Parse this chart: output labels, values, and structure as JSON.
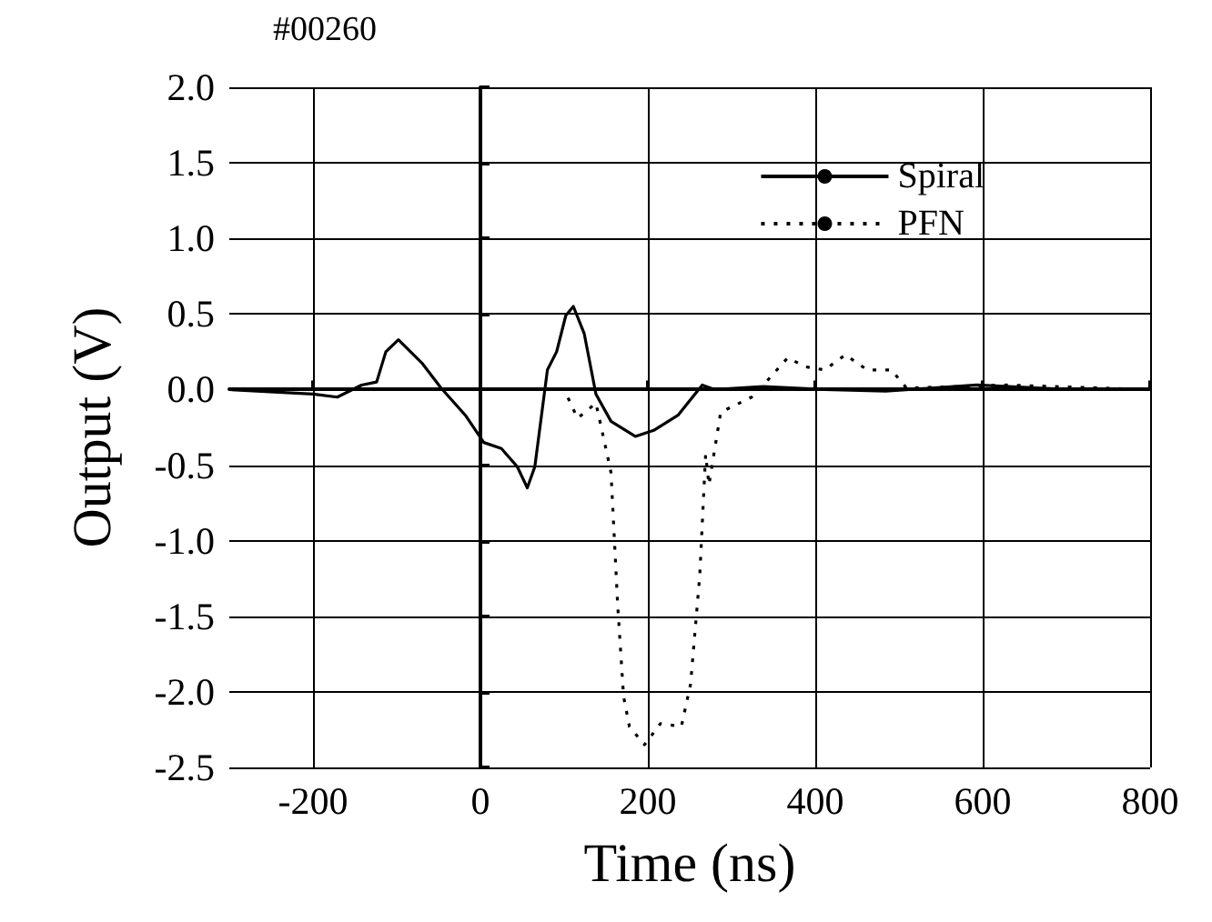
{
  "chart_data": {
    "type": "line",
    "title": "#00260",
    "xlabel": "Time (ns)",
    "ylabel": "Output (V)",
    "xlim": [
      -300,
      800
    ],
    "xticks": [
      -200,
      0,
      200,
      400,
      600,
      800
    ],
    "ylim": [
      -2.5,
      2.0
    ],
    "yticks": [
      {
        "value": -2.5,
        "label": "-2.5"
      },
      {
        "value": -2,
        "label": "-2.0"
      },
      {
        "value": -1.5,
        "label": "-1.5"
      },
      {
        "value": -1,
        "label": "-1.0"
      },
      {
        "value": -0.5,
        "label": "-0.5"
      },
      {
        "value": 0,
        "label": "0.0"
      },
      {
        "value": 0.5,
        "label": "0.5"
      },
      {
        "value": 1,
        "label": "1.0"
      },
      {
        "value": 1.5,
        "label": "1.5"
      },
      {
        "value": 2,
        "label": "2.0"
      }
    ],
    "grid": true,
    "legend": "top right",
    "marker": "none",
    "series": [
      {
        "name": "Spiral",
        "color": "#000000",
        "line_style": "solid",
        "x": [
          -300,
          -200,
          -171,
          -142,
          -124,
          -113,
          -98,
          -69,
          -47,
          -18,
          4,
          25,
          44,
          56,
          65,
          80,
          91,
          102,
          111,
          124,
          138,
          156,
          185,
          207,
          236,
          265,
          280,
          338,
          411,
          484,
          593,
          702,
          800
        ],
        "values": [
          0,
          -0.03,
          -0.05,
          0.03,
          0.05,
          0.25,
          0.33,
          0.17,
          0.01,
          -0.17,
          -0.35,
          -0.39,
          -0.51,
          -0.65,
          -0.51,
          0.13,
          0.25,
          0.49,
          0.55,
          0.37,
          -0.03,
          -0.21,
          -0.31,
          -0.27,
          -0.17,
          0.03,
          0,
          0.02,
          0,
          -0.01,
          0.03,
          0,
          0
        ]
      },
      {
        "name": "PFN",
        "color": "#000000",
        "line_style": "dotted",
        "x": [
          -300,
          100,
          116,
          138,
          153,
          156,
          164,
          171,
          178,
          196,
          215,
          240,
          251,
          262,
          269,
          273,
          287,
          324,
          338,
          367,
          389,
          411,
          436,
          462,
          491,
          509,
          629,
          800
        ],
        "values": [
          0,
          0,
          -0.19,
          -0.09,
          -0.47,
          -0.55,
          -1.43,
          -2.03,
          -2.23,
          -2.35,
          -2.21,
          -2.23,
          -1.95,
          -1.23,
          -0.43,
          -0.63,
          -0.15,
          -0.05,
          0.03,
          0.21,
          0.15,
          0.13,
          0.23,
          0.13,
          0.13,
          0.01,
          0.03,
          0
        ]
      }
    ]
  }
}
